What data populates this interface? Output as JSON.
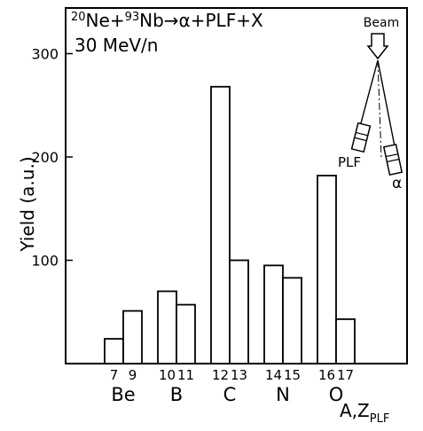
{
  "chart_data": {
    "type": "bar",
    "reaction_line": {
      "projectile_mass": "20",
      "projectile": "Ne+",
      "target_mass": "93",
      "target": "Nb",
      "arrow": "→",
      "products": "α+PLF+X"
    },
    "energy": "30 MeV/n",
    "ylabel": "Yield  (a.u.)",
    "xlabel_main": "A,Z",
    "xlabel_sub": "PLF",
    "ylim": [
      0,
      330
    ],
    "yticks": [
      100,
      200,
      300
    ],
    "grid": false,
    "groups": [
      {
        "element": "Be",
        "isotopes": [
          {
            "A": "7",
            "value": 24
          },
          {
            "A": "9",
            "value": 51
          }
        ]
      },
      {
        "element": "B",
        "isotopes": [
          {
            "A": "10",
            "value": 70
          },
          {
            "A": "11",
            "value": 57
          }
        ]
      },
      {
        "element": "C",
        "isotopes": [
          {
            "A": "12",
            "value": 268
          },
          {
            "A": "13",
            "value": 100
          }
        ]
      },
      {
        "element": "N",
        "isotopes": [
          {
            "A": "14",
            "value": 95
          },
          {
            "A": "15",
            "value": 83
          }
        ]
      },
      {
        "element": "O",
        "isotopes": [
          {
            "A": "16",
            "value": 182
          },
          {
            "A": "17",
            "value": 43
          }
        ]
      }
    ]
  },
  "inset": {
    "beam_label": "Beam",
    "plf_label": "PLF",
    "alpha_label": "α"
  }
}
